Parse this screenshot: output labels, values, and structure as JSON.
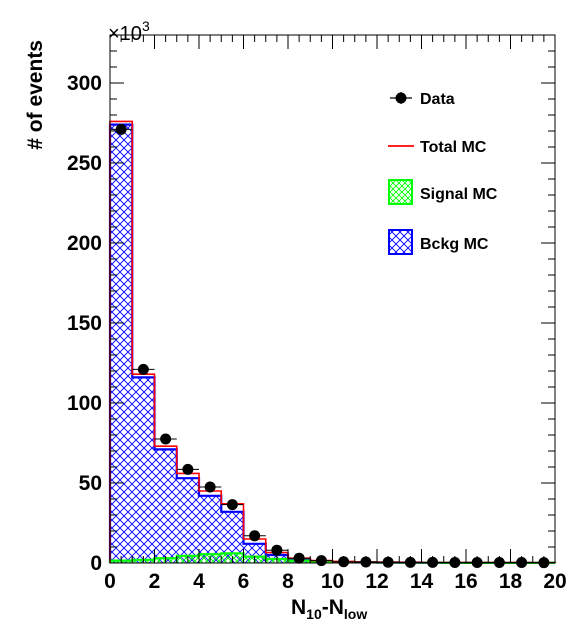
{
  "chart_data": {
    "type": "histogram",
    "xlabel": {
      "main": "N",
      "sub1": "10",
      "mid": "-N",
      "sub2": "low"
    },
    "ylabel": "# of events",
    "y_multiplier": {
      "base": "×10",
      "exp": "3"
    },
    "xlim": [
      0,
      20
    ],
    "ylim": [
      0,
      330
    ],
    "x_ticks": [
      "0",
      "2",
      "4",
      "6",
      "8",
      "10",
      "12",
      "14",
      "16",
      "18",
      "20"
    ],
    "y_ticks": [
      "0",
      "50",
      "100",
      "150",
      "200",
      "250",
      "300"
    ],
    "bin_width": 1,
    "bin_edges_start": 0,
    "series": [
      {
        "name": "Data",
        "style": "points",
        "color": "#000000",
        "values": [
          271,
          121,
          77.5,
          58.5,
          47.5,
          36.5,
          17,
          8,
          3,
          1.5,
          0.8,
          0.6,
          0.5,
          0.4,
          0.4,
          0.3,
          0.3,
          0.3,
          0.3,
          0.2
        ]
      },
      {
        "name": "Total MC",
        "style": "step",
        "color": "#ff0000",
        "values": [
          276,
          118,
          73,
          56,
          45,
          37,
          15,
          6.5,
          3,
          1.5,
          1,
          0.7,
          0.5,
          0.4,
          0.3,
          0.3,
          0.3,
          0.3,
          0.3,
          0.2
        ]
      },
      {
        "name": "Signal MC",
        "style": "hatched",
        "color": "#00ff00",
        "values": [
          1.5,
          2,
          3,
          4.5,
          5.5,
          6,
          4,
          2.5,
          1.5,
          1,
          0.6,
          0.4,
          0.3,
          0.2,
          0.2,
          0.1,
          0.1,
          0.1,
          0.1,
          0.1
        ]
      },
      {
        "name": "Bckg MC",
        "style": "hatched",
        "color": "#0000ff",
        "values": [
          274,
          116,
          71,
          53,
          42,
          32,
          12,
          5,
          2,
          1,
          0.6,
          0.4,
          0.3,
          0.3,
          0.2,
          0.2,
          0.2,
          0.2,
          0.2,
          0.1
        ]
      }
    ],
    "legend": [
      {
        "label": "Data",
        "marker": "point"
      },
      {
        "label": "Total MC",
        "marker": "line"
      },
      {
        "label": "Signal MC",
        "marker": "box"
      },
      {
        "label": "Bckg MC",
        "marker": "box"
      }
    ],
    "legend_placement": "top-right",
    "grid": false
  }
}
